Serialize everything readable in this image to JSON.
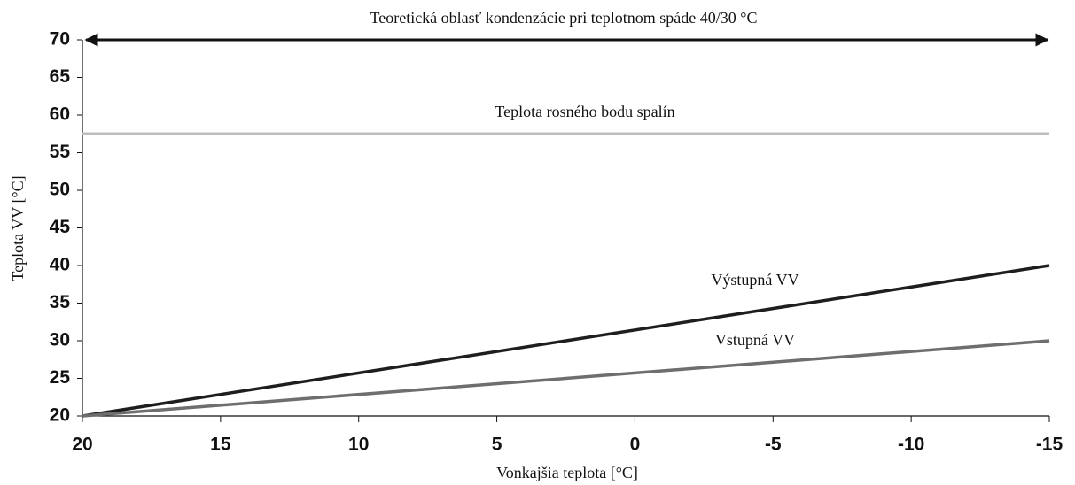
{
  "chart_data": {
    "type": "line",
    "title": "Teoretická oblasť kondenzácie pri teplotnom spáde 40/30 °C",
    "xlabel": "Vonkajšia teplota [°C]",
    "ylabel": "Teplota VV [°C]",
    "xlim": [
      20,
      -15
    ],
    "xticks": [
      20,
      15,
      10,
      5,
      0,
      -5,
      -10,
      -15
    ],
    "ylim": [
      20,
      70
    ],
    "yticks": [
      20,
      25,
      30,
      35,
      40,
      45,
      50,
      55,
      60,
      65,
      70
    ],
    "series": [
      {
        "name": "Teplota rosného bodu spalín",
        "color": "#bdbdbd",
        "x": [
          20,
          -15
        ],
        "values": [
          57.5,
          57.5
        ]
      },
      {
        "name": "Výstupná VV",
        "color": "#1e1e1e",
        "x": [
          20,
          -15
        ],
        "values": [
          20,
          40
        ]
      },
      {
        "name": "Vstupná VV",
        "color": "#6e6e6e",
        "x": [
          20,
          -15
        ],
        "values": [
          20,
          30
        ]
      }
    ]
  }
}
